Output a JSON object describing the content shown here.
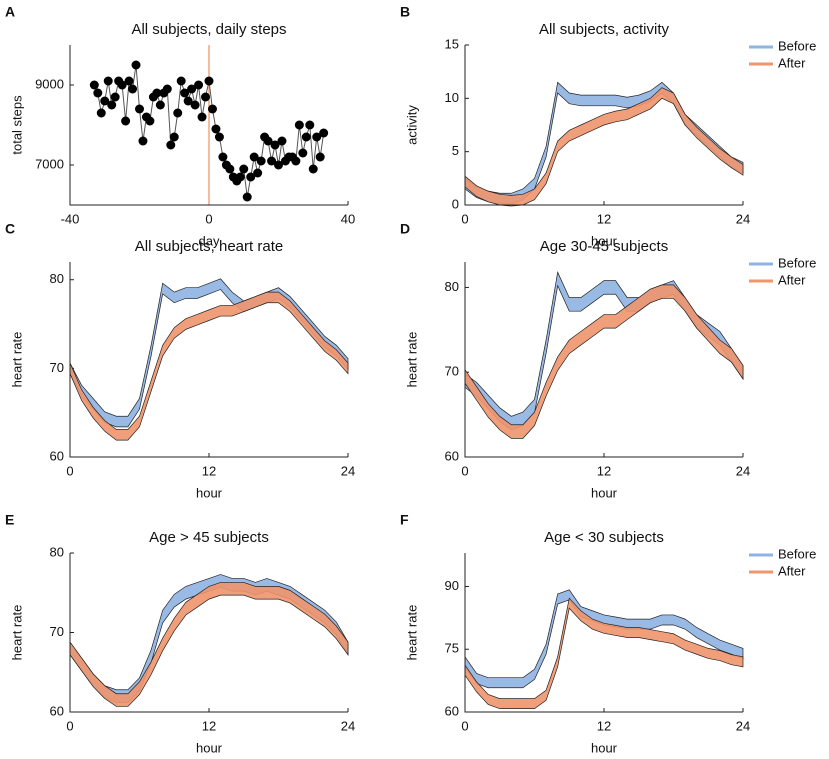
{
  "chart_data": [
    {
      "type": "scatter",
      "panel": "A",
      "title": "All subjects, daily steps",
      "xlabel": "day",
      "ylabel": "total steps",
      "xlim": [
        -40,
        40
      ],
      "xticks": [
        -40,
        0,
        40
      ],
      "ylim": [
        6000,
        10000
      ],
      "yticks": [
        7000,
        9000
      ],
      "connect": true,
      "color": "#000000",
      "line_color": "#555555",
      "vline": 0,
      "vline_color": "#f4a582",
      "x": [
        -33,
        -32,
        -31,
        -30,
        -29,
        -28,
        -27,
        -26,
        -25,
        -24,
        -23,
        -22,
        -21,
        -20,
        -19,
        -18,
        -17,
        -16,
        -15,
        -14,
        -13,
        -12,
        -11,
        -10,
        -9,
        -8,
        -7,
        -6,
        -5,
        -4,
        -3,
        -2,
        -1,
        0,
        1,
        2,
        3,
        4,
        5,
        6,
        7,
        8,
        9,
        10,
        11,
        12,
        13,
        14,
        15,
        16,
        17,
        18,
        19,
        20,
        21,
        22,
        23,
        24,
        25,
        26,
        27,
        28,
        29,
        30,
        31,
        32,
        33
      ],
      "values": [
        9000,
        8800,
        8300,
        8600,
        9100,
        8500,
        8700,
        9100,
        9000,
        8100,
        9100,
        8900,
        9500,
        8400,
        7600,
        8200,
        8100,
        8700,
        8800,
        8500,
        8800,
        8900,
        7500,
        7700,
        8300,
        9100,
        8800,
        8600,
        8900,
        8500,
        9000,
        8200,
        8700,
        9100,
        8400,
        7900,
        7700,
        7200,
        7000,
        6900,
        6700,
        6600,
        6700,
        6900,
        6200,
        6700,
        7200,
        6800,
        7100,
        7700,
        7600,
        7100,
        7500,
        7000,
        7600,
        7100,
        7200,
        7200,
        7100,
        8000,
        7300,
        7700,
        8000,
        6900,
        7700,
        7200,
        7800
      ]
    },
    {
      "type": "line",
      "panel": "B",
      "title": "All subjects, activity",
      "xlabel": "hour",
      "ylabel": "activity",
      "xlim": [
        0,
        24
      ],
      "xticks": [
        0,
        12,
        24
      ],
      "ylim": [
        0,
        15
      ],
      "yticks": [
        0,
        5,
        10,
        15
      ],
      "legend": "right",
      "x": [
        0,
        1,
        2,
        3,
        4,
        5,
        6,
        7,
        8,
        9,
        10,
        11,
        12,
        13,
        14,
        15,
        16,
        17,
        18,
        19,
        20,
        21,
        22,
        23,
        24
      ],
      "series": [
        {
          "name": "Before",
          "color": "#8fb3e3",
          "error": 0.5,
          "values": [
            2,
            1.2,
            0.8,
            0.6,
            0.6,
            1,
            2,
            5,
            11,
            10,
            9.8,
            9.8,
            9.8,
            9.8,
            9.6,
            9.8,
            10.2,
            11,
            10,
            8,
            7,
            6,
            5,
            4,
            3.5
          ]
        },
        {
          "name": "After",
          "color": "#f0956c",
          "error": 0.5,
          "values": [
            2.2,
            1.3,
            0.8,
            0.5,
            0.4,
            0.5,
            1,
            2.5,
            5.5,
            6.5,
            7,
            7.5,
            8,
            8.3,
            8.5,
            9,
            9.5,
            10.5,
            10,
            8,
            6.8,
            5.8,
            4.8,
            4,
            3.3
          ]
        }
      ]
    },
    {
      "type": "line",
      "panel": "C",
      "title": "All subjects, heart rate",
      "xlabel": "hour",
      "ylabel": "heart rate",
      "xlim": [
        0,
        24
      ],
      "xticks": [
        0,
        12,
        24
      ],
      "ylim": [
        60,
        82
      ],
      "yticks": [
        60,
        70,
        80
      ],
      "x": [
        0,
        1,
        2,
        3,
        4,
        5,
        6,
        7,
        8,
        9,
        10,
        11,
        12,
        13,
        14,
        15,
        16,
        17,
        18,
        19,
        20,
        21,
        22,
        23,
        24
      ],
      "series": [
        {
          "name": "Before",
          "color": "#8fb3e3",
          "error": 0.6,
          "values": [
            70,
            67.5,
            66,
            64.5,
            64,
            64,
            66,
            72,
            79,
            78,
            78.5,
            78.5,
            79,
            79.5,
            78,
            77,
            77.5,
            78,
            78.5,
            77.5,
            76,
            74.5,
            73,
            72,
            70.5
          ]
        },
        {
          "name": "After",
          "color": "#f0956c",
          "error": 0.6,
          "values": [
            70,
            67,
            65,
            63.5,
            62.5,
            62.5,
            64,
            68,
            72,
            74,
            75,
            75.5,
            76,
            76.5,
            76.5,
            77,
            77.5,
            78,
            78,
            77,
            75.5,
            74,
            72.5,
            71.5,
            70
          ]
        }
      ]
    },
    {
      "type": "line",
      "panel": "D",
      "title": "Age 30-45 subjects",
      "xlabel": "hour",
      "ylabel": "heart rate",
      "xlim": [
        0,
        24
      ],
      "xticks": [
        0,
        12,
        24
      ],
      "ylim": [
        60,
        83
      ],
      "yticks": [
        60,
        70,
        80
      ],
      "legend": "right",
      "x": [
        0,
        1,
        2,
        3,
        4,
        5,
        6,
        7,
        8,
        9,
        10,
        11,
        12,
        13,
        14,
        15,
        16,
        17,
        18,
        19,
        20,
        21,
        22,
        23,
        24
      ],
      "series": [
        {
          "name": "Before",
          "color": "#8fb3e3",
          "error": 0.8,
          "values": [
            69,
            68,
            66.5,
            65,
            64,
            64.5,
            66,
            73,
            81,
            78,
            78,
            79,
            80,
            80,
            78,
            78,
            79,
            79.5,
            80,
            78,
            76,
            75,
            74,
            72,
            70
          ]
        },
        {
          "name": "After",
          "color": "#f0956c",
          "error": 0.8,
          "values": [
            69.5,
            67.5,
            65.5,
            64,
            63,
            63,
            64.5,
            68,
            71,
            73,
            74,
            75,
            76,
            76,
            77,
            78,
            79,
            79.5,
            79.5,
            78,
            76,
            74.5,
            73,
            72,
            70
          ]
        }
      ]
    },
    {
      "type": "line",
      "panel": "E",
      "title": "Age > 45 subjects",
      "xlabel": "hour",
      "ylabel": "heart rate",
      "xlim": [
        0,
        24
      ],
      "xticks": [
        0,
        12,
        24
      ],
      "ylim": [
        60,
        80
      ],
      "yticks": [
        60,
        70,
        80
      ],
      "x": [
        0,
        1,
        2,
        3,
        4,
        5,
        6,
        7,
        8,
        9,
        10,
        11,
        12,
        13,
        14,
        15,
        16,
        17,
        18,
        19,
        20,
        21,
        22,
        23,
        24
      ],
      "series": [
        {
          "name": "Before",
          "color": "#8fb3e3",
          "error": 0.8,
          "values": [
            68,
            66,
            64,
            62.5,
            62,
            62,
            63.5,
            67,
            72,
            74,
            75,
            75.5,
            76,
            76.5,
            76,
            76,
            75.5,
            76,
            75.5,
            75,
            74,
            73,
            72,
            70.5,
            68
          ]
        },
        {
          "name": "After",
          "color": "#f0956c",
          "error": 0.8,
          "values": [
            68,
            66,
            64,
            62.5,
            61.5,
            61.5,
            63,
            65.5,
            68.5,
            71,
            73,
            74,
            75,
            75.5,
            75.5,
            75.5,
            75,
            75,
            75,
            74.5,
            73.5,
            72.5,
            71.5,
            70,
            68
          ]
        }
      ]
    },
    {
      "type": "line",
      "panel": "F",
      "title": "Age < 30 subjects",
      "xlabel": "hour",
      "ylabel": "heart rate",
      "xlim": [
        0,
        24
      ],
      "xticks": [
        0,
        12,
        24
      ],
      "ylim": [
        60,
        98
      ],
      "yticks": [
        60,
        75,
        90
      ],
      "legend": "right",
      "x": [
        0,
        1,
        2,
        3,
        4,
        5,
        6,
        7,
        8,
        9,
        10,
        11,
        12,
        13,
        14,
        15,
        16,
        17,
        18,
        19,
        20,
        21,
        22,
        23,
        24
      ],
      "series": [
        {
          "name": "Before",
          "color": "#8fb3e3",
          "error": 1.2,
          "values": [
            72,
            68,
            67,
            67,
            67,
            67,
            69,
            75,
            87,
            88,
            84,
            83,
            82,
            81.5,
            81,
            81,
            81,
            82,
            82,
            81,
            79,
            77.5,
            76,
            75,
            74
          ]
        },
        {
          "name": "After",
          "color": "#f0956c",
          "error": 1.2,
          "values": [
            70,
            66,
            63,
            62,
            62,
            62,
            62,
            64,
            72,
            86,
            83,
            81,
            80,
            79.5,
            79,
            79,
            78.5,
            78,
            77.5,
            76,
            75,
            74,
            73.5,
            72.5,
            72
          ]
        }
      ]
    }
  ]
}
